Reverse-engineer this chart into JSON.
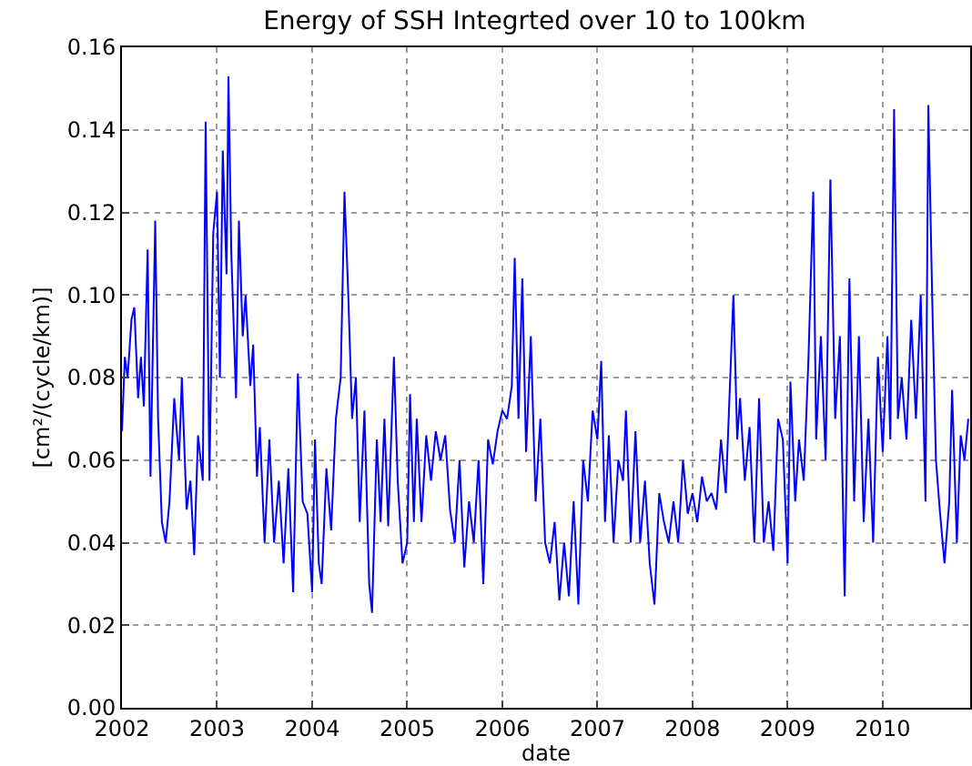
{
  "chart_data": {
    "type": "line",
    "title": "Energy of SSH Integrted over 10 to 100km",
    "xlabel": "date",
    "ylabel": "[cm²/(cycle/km)]",
    "x": [
      2002.0,
      2002.03,
      2002.06,
      2002.1,
      2002.13,
      2002.17,
      2002.2,
      2002.23,
      2002.27,
      2002.3,
      2002.35,
      2002.38,
      2002.42,
      2002.46,
      2002.5,
      2002.55,
      2002.6,
      2002.63,
      2002.68,
      2002.72,
      2002.76,
      2002.8,
      2002.85,
      2002.88,
      2002.92,
      2002.96,
      2003.0,
      2003.03,
      2003.06,
      2003.1,
      2003.12,
      2003.15,
      2003.2,
      2003.23,
      2003.27,
      2003.3,
      2003.35,
      2003.38,
      2003.42,
      2003.45,
      2003.5,
      2003.55,
      2003.6,
      2003.65,
      2003.7,
      2003.75,
      2003.8,
      2003.85,
      2003.9,
      2003.95,
      2004.0,
      2004.03,
      2004.07,
      2004.1,
      2004.15,
      2004.2,
      2004.25,
      2004.3,
      2004.34,
      2004.38,
      2004.42,
      2004.46,
      2004.5,
      2004.55,
      2004.6,
      2004.63,
      2004.68,
      2004.72,
      2004.76,
      2004.8,
      2004.86,
      2004.9,
      2004.95,
      2005.0,
      2005.03,
      2005.07,
      2005.1,
      2005.15,
      2005.2,
      2005.25,
      2005.3,
      2005.35,
      2005.4,
      2005.45,
      2005.5,
      2005.55,
      2005.6,
      2005.65,
      2005.7,
      2005.75,
      2005.8,
      2005.85,
      2005.9,
      2005.95,
      2006.0,
      2006.05,
      2006.1,
      2006.13,
      2006.17,
      2006.21,
      2006.25,
      2006.3,
      2006.35,
      2006.4,
      2006.45,
      2006.5,
      2006.55,
      2006.6,
      2006.65,
      2006.7,
      2006.75,
      2006.8,
      2006.85,
      2006.9,
      2006.95,
      2007.0,
      2007.04,
      2007.08,
      2007.12,
      2007.17,
      2007.22,
      2007.27,
      2007.3,
      2007.35,
      2007.4,
      2007.45,
      2007.5,
      2007.55,
      2007.6,
      2007.65,
      2007.7,
      2007.75,
      2007.8,
      2007.85,
      2007.9,
      2007.95,
      2008.0,
      2008.05,
      2008.1,
      2008.15,
      2008.2,
      2008.25,
      2008.3,
      2008.35,
      2008.4,
      2008.43,
      2008.47,
      2008.5,
      2008.55,
      2008.6,
      2008.65,
      2008.7,
      2008.75,
      2008.8,
      2008.85,
      2008.9,
      2008.95,
      2009.0,
      2009.03,
      2009.08,
      2009.12,
      2009.17,
      2009.22,
      2009.27,
      2009.3,
      2009.35,
      2009.4,
      2009.45,
      2009.5,
      2009.55,
      2009.6,
      2009.65,
      2009.7,
      2009.75,
      2009.8,
      2009.85,
      2009.9,
      2009.95,
      2010.0,
      2010.05,
      2010.08,
      2010.12,
      2010.16,
      2010.2,
      2010.25,
      2010.3,
      2010.35,
      2010.4,
      2010.45,
      2010.48,
      2010.52,
      2010.56,
      2010.6,
      2010.65,
      2010.7,
      2010.73,
      2010.78,
      2010.82,
      2010.86,
      2010.9
    ],
    "series": [
      {
        "color": "#0000ff",
        "values": [
          0.067,
          0.085,
          0.08,
          0.094,
          0.097,
          0.075,
          0.085,
          0.073,
          0.111,
          0.056,
          0.118,
          0.07,
          0.045,
          0.04,
          0.05,
          0.075,
          0.06,
          0.08,
          0.048,
          0.055,
          0.037,
          0.066,
          0.055,
          0.142,
          0.055,
          0.115,
          0.125,
          0.08,
          0.135,
          0.105,
          0.153,
          0.11,
          0.075,
          0.118,
          0.09,
          0.1,
          0.078,
          0.088,
          0.056,
          0.068,
          0.04,
          0.065,
          0.04,
          0.055,
          0.035,
          0.058,
          0.028,
          0.081,
          0.05,
          0.047,
          0.028,
          0.065,
          0.035,
          0.03,
          0.058,
          0.043,
          0.07,
          0.08,
          0.125,
          0.1,
          0.07,
          0.08,
          0.045,
          0.072,
          0.03,
          0.023,
          0.065,
          0.045,
          0.07,
          0.044,
          0.085,
          0.055,
          0.035,
          0.04,
          0.076,
          0.045,
          0.07,
          0.045,
          0.066,
          0.055,
          0.067,
          0.06,
          0.066,
          0.048,
          0.04,
          0.06,
          0.034,
          0.05,
          0.04,
          0.06,
          0.03,
          0.065,
          0.059,
          0.067,
          0.072,
          0.07,
          0.078,
          0.109,
          0.07,
          0.104,
          0.062,
          0.09,
          0.05,
          0.07,
          0.04,
          0.035,
          0.045,
          0.026,
          0.04,
          0.027,
          0.05,
          0.025,
          0.06,
          0.05,
          0.072,
          0.065,
          0.084,
          0.045,
          0.066,
          0.04,
          0.06,
          0.055,
          0.072,
          0.04,
          0.067,
          0.04,
          0.055,
          0.035,
          0.025,
          0.052,
          0.045,
          0.04,
          0.05,
          0.04,
          0.06,
          0.047,
          0.052,
          0.045,
          0.056,
          0.05,
          0.052,
          0.048,
          0.065,
          0.052,
          0.082,
          0.1,
          0.065,
          0.075,
          0.055,
          0.068,
          0.04,
          0.075,
          0.04,
          0.05,
          0.038,
          0.07,
          0.065,
          0.035,
          0.079,
          0.05,
          0.065,
          0.055,
          0.085,
          0.125,
          0.065,
          0.09,
          0.06,
          0.128,
          0.07,
          0.09,
          0.027,
          0.104,
          0.05,
          0.09,
          0.045,
          0.07,
          0.04,
          0.085,
          0.062,
          0.09,
          0.065,
          0.145,
          0.07,
          0.08,
          0.065,
          0.094,
          0.07,
          0.1,
          0.05,
          0.146,
          0.1,
          0.06,
          0.048,
          0.035,
          0.05,
          0.077,
          0.04,
          0.066,
          0.06,
          0.07
        ]
      }
    ],
    "xlim": [
      2002,
      2010.92
    ],
    "xticks": [
      2002,
      2003,
      2004,
      2005,
      2006,
      2007,
      2008,
      2009,
      2010
    ],
    "ylim": [
      0,
      0.16
    ],
    "yticks": [
      {
        "value": 0,
        "label": "0.00"
      },
      {
        "value": 0.02,
        "label": "0.02"
      },
      {
        "value": 0.04,
        "label": "0.04"
      },
      {
        "value": 0.06,
        "label": "0.06"
      },
      {
        "value": 0.08,
        "label": "0.08"
      },
      {
        "value": 0.1,
        "label": "0.10"
      },
      {
        "value": 0.12,
        "label": "0.12"
      },
      {
        "value": 0.14,
        "label": "0.14"
      },
      {
        "value": 0.16,
        "label": "0.16"
      }
    ],
    "grid": true,
    "line_style": "solid",
    "marker": "none"
  }
}
